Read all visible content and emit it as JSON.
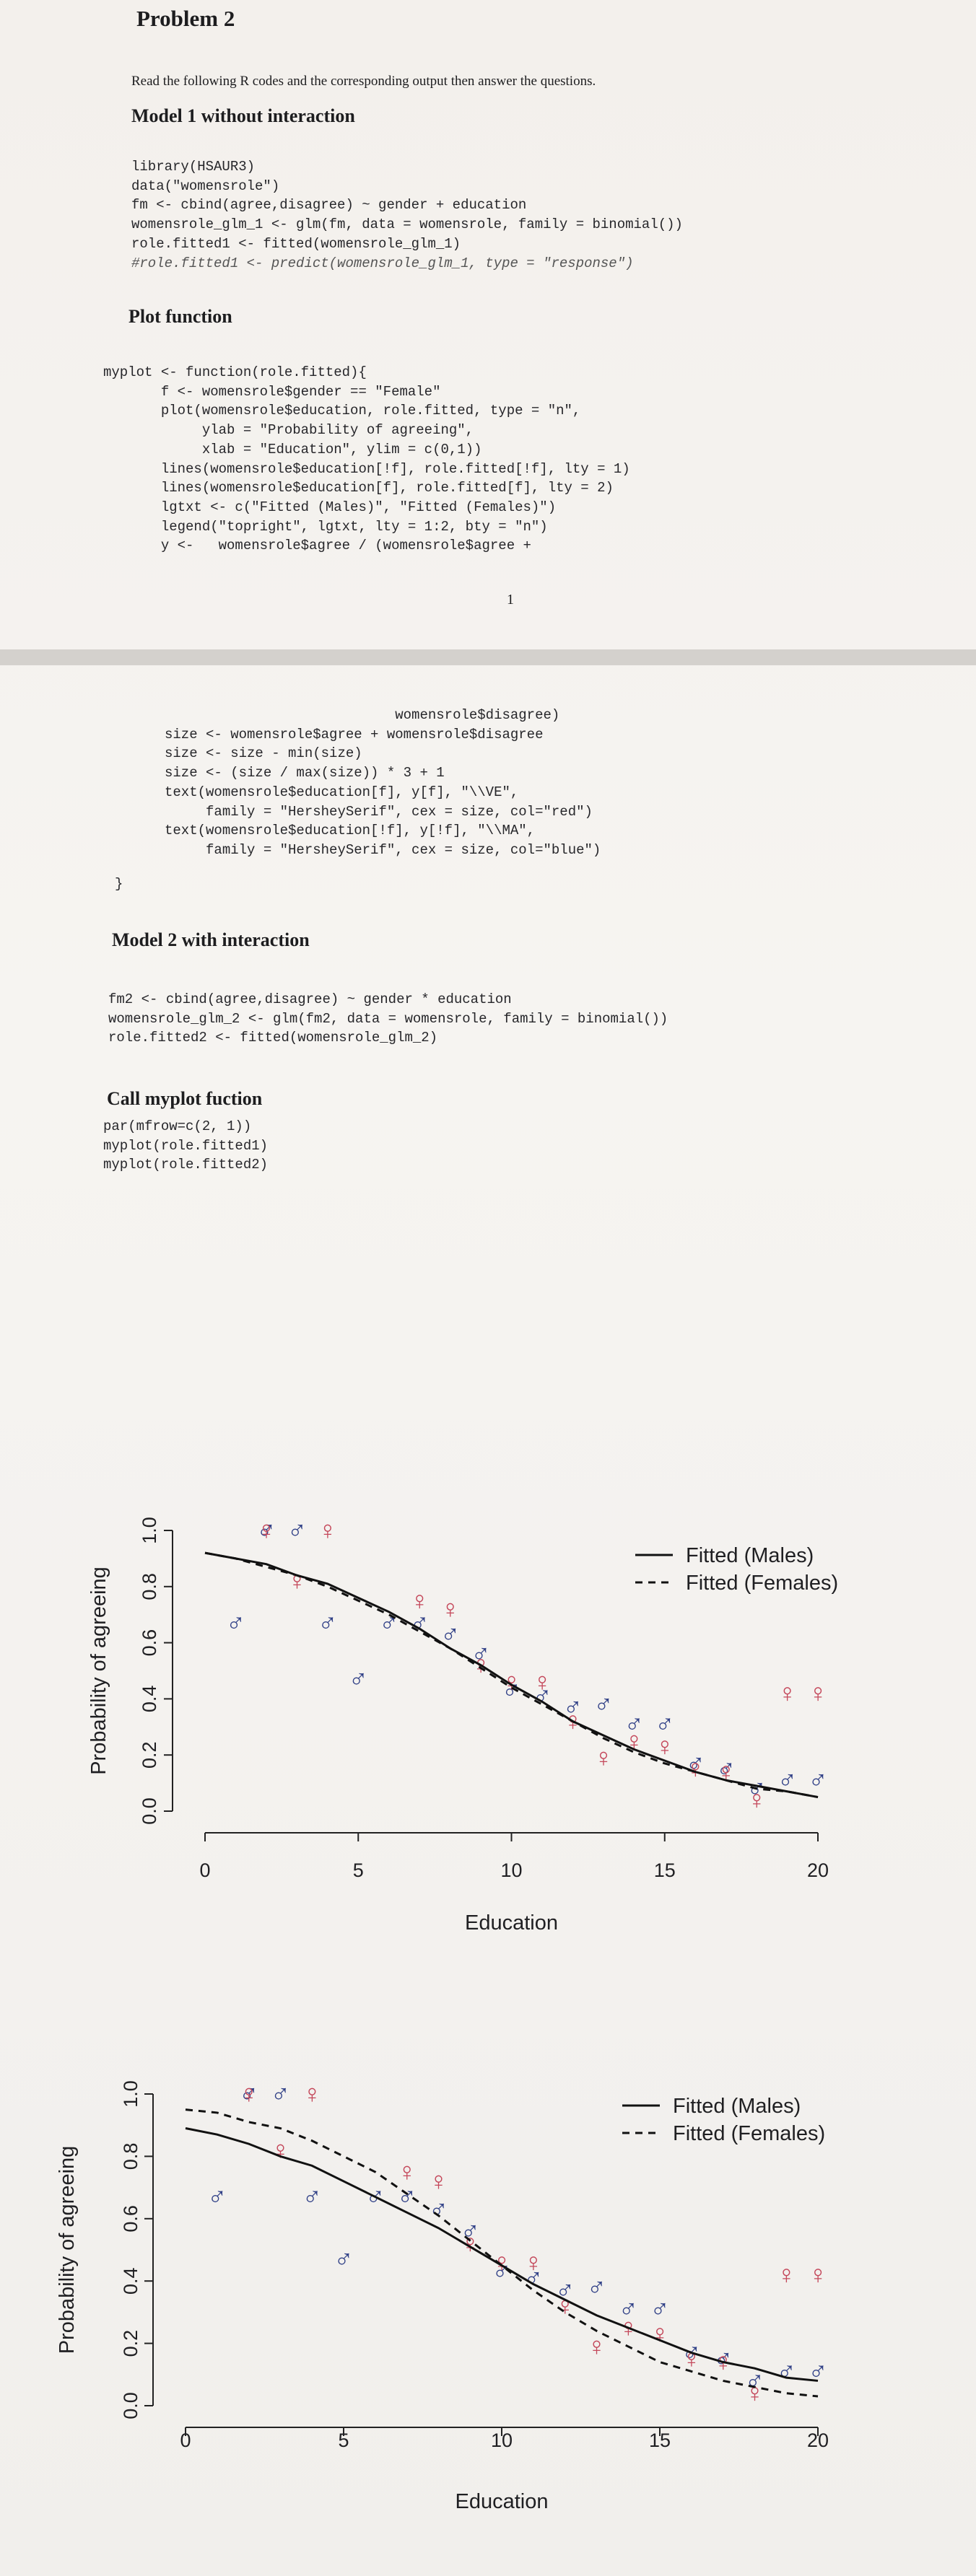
{
  "header": {
    "title": "Problem 2",
    "intro": "Read the following R codes and the corresponding output then answer the questions."
  },
  "sections": [
    {
      "heading": "Model 1 without interaction",
      "code": [
        "library(HSAUR3)",
        "data(\"womensrole\")",
        "fm <- cbind(agree,disagree) ~ gender + education",
        "womensrole_glm_1 <- glm(fm, data = womensrole, family = binomial())",
        "role.fitted1 <- fitted(womensrole_glm_1)",
        "#role.fitted1 <- predict(womensrole_glm_1, type = \"response\")"
      ]
    },
    {
      "heading": "Plot function",
      "code": [
        "myplot <- function(role.fitted){",
        "       f <- womensrole$gender == \"Female\"",
        "       plot(womensrole$education, role.fitted, type = \"n\",",
        "            ylab = \"Probability of agreeing\",",
        "            xlab = \"Education\", ylim = c(0,1))",
        "       lines(womensrole$education[!f], role.fitted[!f], lty = 1)",
        "       lines(womensrole$education[f], role.fitted[f], lty = 2)",
        "       lgtxt <- c(\"Fitted (Males)\", \"Fitted (Females)\")",
        "       legend(\"topright\", lgtxt, lty = 1:2, bty = \"n\")",
        "       y <-   womensrole$agree / (womensrole$agree +"
      ]
    },
    {
      "heading": "Model 2 with interaction",
      "code": [
        "fm2 <- cbind(agree,disagree) ~ gender * education",
        "womensrole_glm_2 <- glm(fm2, data = womensrole, family = binomial())",
        "role.fitted2 <- fitted(womensrole_glm_2)"
      ]
    },
    {
      "heading": "Call myplot fuction",
      "code": [
        "par(mfrow=c(2, 1))",
        "myplot(role.fitted1)",
        "myplot(role.fitted2)"
      ]
    }
  ],
  "page_number": 1,
  "continued_code": [
    "                            womensrole$disagree)",
    "size <- womensrole$agree + womensrole$disagree",
    "size <- size - min(size)",
    "size <- (size / max(size)) * 3 + 1",
    "text(womensrole$education[f], y[f], \"\\\\VE\",",
    "     family = \"HersheySerif\", cex = size, col=\"red\")",
    "text(womensrole$education[!f], y[!f], \"\\\\MA\",",
    "     family = \"HersheySerif\", cex = size, col=\"blue\")"
  ],
  "closing_brace": "}",
  "figures": [
    {
      "x_label": "Education",
      "y_label": "Probability of agreeing",
      "xlim": [
        0,
        20
      ],
      "ylim": [
        0,
        1
      ],
      "xticks": [
        0,
        5,
        10,
        15,
        20
      ],
      "yticks": [
        {
          "value": 0,
          "label": "0.0"
        },
        0.2,
        0.4,
        0.6,
        0.8,
        {
          "value": 1,
          "label": "1.0"
        }
      ],
      "legend": "topright",
      "series": [
        {
          "name": "Fitted (Males)",
          "line": "solid",
          "color": "#111111",
          "x": [
            0,
            1,
            2,
            3,
            4,
            5,
            6,
            7,
            8,
            9,
            10,
            11,
            12,
            13,
            14,
            15,
            16,
            17,
            18,
            19,
            20
          ],
          "values": [
            0.92,
            0.9,
            0.88,
            0.84,
            0.81,
            0.76,
            0.71,
            0.65,
            0.58,
            0.52,
            0.45,
            0.39,
            0.32,
            0.27,
            0.22,
            0.18,
            0.14,
            0.11,
            0.09,
            0.07,
            0.05
          ]
        },
        {
          "name": "Fitted (Females)",
          "line": "dashed",
          "color": "#111111",
          "x": [
            0,
            1,
            2,
            3,
            4,
            5,
            6,
            7,
            8,
            9,
            10,
            11,
            12,
            13,
            14,
            15,
            16,
            17,
            18,
            19,
            20
          ],
          "values": [
            0.92,
            0.9,
            0.87,
            0.84,
            0.8,
            0.75,
            0.7,
            0.64,
            0.58,
            0.51,
            0.44,
            0.38,
            0.32,
            0.26,
            0.21,
            0.17,
            0.14,
            0.11,
            0.08,
            0.07,
            0.05
          ]
        }
      ],
      "points": [
        {
          "symbol": "♂",
          "color": "#2f3f86",
          "x": [
            1,
            2,
            3,
            4,
            5,
            6,
            7,
            8,
            9,
            10,
            11,
            12,
            13,
            14,
            15,
            16,
            17,
            18,
            19,
            20
          ],
          "values": [
            0.67,
            1.0,
            1.0,
            0.67,
            0.47,
            0.67,
            0.67,
            0.63,
            0.56,
            0.43,
            0.41,
            0.37,
            0.38,
            0.31,
            0.31,
            0.17,
            0.15,
            0.08,
            0.11,
            0.11
          ]
        },
        {
          "symbol": "♀",
          "color": "#c4475a",
          "x": [
            2,
            3,
            4,
            7,
            8,
            9,
            10,
            11,
            12,
            13,
            14,
            15,
            16,
            17,
            18,
            19,
            20
          ],
          "values": [
            1.0,
            0.82,
            1.0,
            0.75,
            0.72,
            0.52,
            0.46,
            0.46,
            0.32,
            0.19,
            0.25,
            0.23,
            0.15,
            0.14,
            0.04,
            0.42,
            0.42
          ]
        }
      ]
    },
    {
      "x_label": "Education",
      "y_label": "Probability of agreeing",
      "xlim": [
        0,
        20
      ],
      "ylim": [
        0,
        1
      ],
      "xticks": [
        0,
        5,
        10,
        15,
        20
      ],
      "yticks": [
        {
          "value": 0,
          "label": "0.0"
        },
        0.2,
        0.4,
        0.6,
        0.8,
        {
          "value": 1,
          "label": "1.0"
        }
      ],
      "legend": "topright",
      "series": [
        {
          "name": "Fitted (Males)",
          "line": "solid",
          "color": "#111111",
          "x": [
            0,
            1,
            2,
            3,
            4,
            5,
            6,
            7,
            8,
            9,
            10,
            11,
            12,
            13,
            14,
            15,
            16,
            17,
            18,
            19,
            20
          ],
          "values": [
            0.89,
            0.87,
            0.84,
            0.8,
            0.77,
            0.72,
            0.67,
            0.62,
            0.57,
            0.51,
            0.45,
            0.39,
            0.34,
            0.29,
            0.25,
            0.21,
            0.17,
            0.14,
            0.12,
            0.09,
            0.08
          ]
        },
        {
          "name": "Fitted (Females)",
          "line": "dashed",
          "color": "#111111",
          "x": [
            0,
            1,
            2,
            3,
            4,
            5,
            6,
            7,
            8,
            9,
            10,
            11,
            12,
            13,
            14,
            15,
            16,
            17,
            18,
            19,
            20
          ],
          "values": [
            0.95,
            0.94,
            0.91,
            0.89,
            0.85,
            0.8,
            0.75,
            0.68,
            0.61,
            0.53,
            0.45,
            0.37,
            0.3,
            0.24,
            0.19,
            0.14,
            0.11,
            0.08,
            0.06,
            0.04,
            0.03
          ]
        }
      ],
      "points": [
        {
          "symbol": "♂",
          "color": "#2f3f86",
          "x": [
            1,
            2,
            3,
            4,
            5,
            6,
            7,
            8,
            9,
            10,
            11,
            12,
            13,
            14,
            15,
            16,
            17,
            18,
            19,
            20
          ],
          "values": [
            0.67,
            1.0,
            1.0,
            0.67,
            0.47,
            0.67,
            0.67,
            0.63,
            0.56,
            0.43,
            0.41,
            0.37,
            0.38,
            0.31,
            0.31,
            0.17,
            0.15,
            0.08,
            0.11,
            0.11
          ]
        },
        {
          "symbol": "♀",
          "color": "#c4475a",
          "x": [
            2,
            3,
            4,
            7,
            8,
            9,
            10,
            11,
            12,
            13,
            14,
            15,
            16,
            17,
            18,
            19,
            20
          ],
          "values": [
            1.0,
            0.82,
            1.0,
            0.75,
            0.72,
            0.52,
            0.46,
            0.46,
            0.32,
            0.19,
            0.25,
            0.23,
            0.15,
            0.14,
            0.04,
            0.42,
            0.42
          ]
        }
      ]
    }
  ]
}
